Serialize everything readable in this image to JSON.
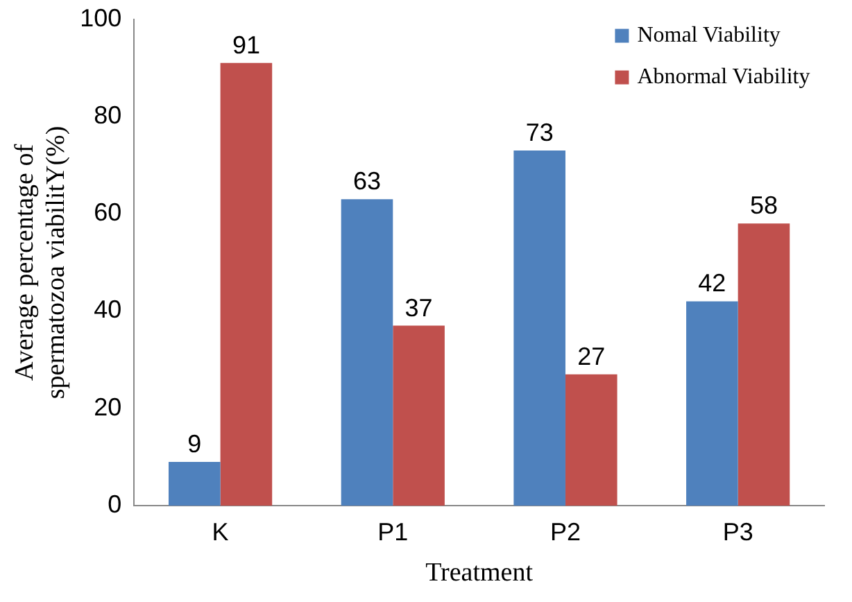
{
  "chart_data": {
    "type": "bar",
    "xlabel": "Treatment",
    "ylabel": "Average percentage of\nspermatozoa viabilitY(%)",
    "categories": [
      "K",
      "P1",
      "P2",
      "P3"
    ],
    "series": [
      {
        "name": "Nomal Viability",
        "color": "#4f81bd",
        "values": [
          9,
          63,
          73,
          42
        ]
      },
      {
        "name": "Abnormal Viability",
        "color": "#c0504d",
        "values": [
          91,
          37,
          27,
          58
        ]
      }
    ],
    "ylim": [
      0,
      100
    ],
    "yticks": [
      0,
      20,
      40,
      60,
      80,
      100
    ],
    "grid": false,
    "legend": "top right",
    "data_labels": true
  }
}
